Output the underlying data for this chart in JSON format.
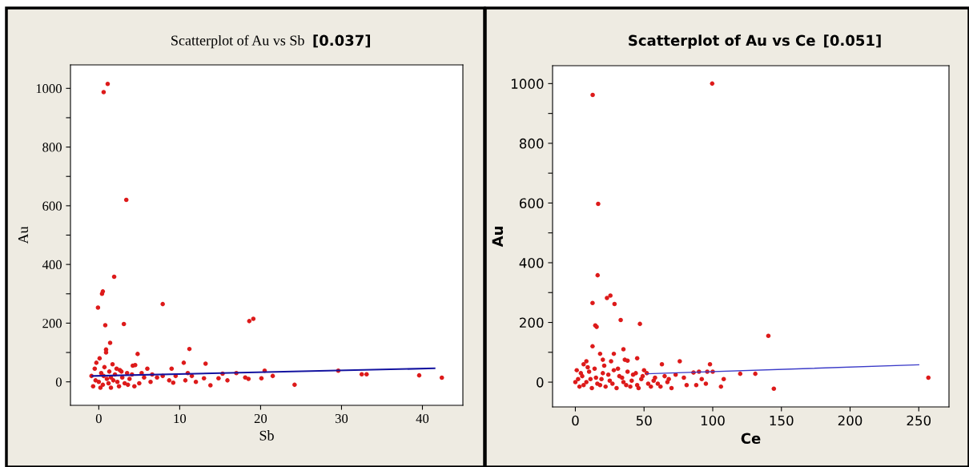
{
  "chart_data": [
    {
      "type": "scatter",
      "title": "Scatterplot of Au vs Sb",
      "annotations": [
        "[0.037]"
      ],
      "xlabel": "Sb",
      "ylabel": "Au",
      "xlim": [
        -3.5,
        45
      ],
      "ylim": [
        -80,
        1080
      ],
      "xticks": [
        0,
        10,
        20,
        30,
        40
      ],
      "yticks": [
        0,
        {
          "value": 100,
          "label": null
        },
        200,
        {
          "value": 300,
          "label": null
        },
        400,
        {
          "value": 500,
          "label": null
        },
        600,
        {
          "value": 700,
          "label": null
        },
        800,
        {
          "value": 900,
          "label": null
        },
        1000
      ],
      "grid": false,
      "series": [
        {
          "marker": "circle",
          "color": "#dd1a1a",
          "x": [
            0.6,
            1.1,
            3.4,
            1.9,
            0.4,
            0.5,
            -0.1,
            7.9,
            0.8,
            3.1,
            18.6,
            19.1,
            1.4,
            0.9,
            0.9,
            4.8,
            11.2,
            10.5,
            13.2,
            4.2,
            4.5,
            12.0,
            13.8,
            14.8,
            15.3,
            15.9,
            17.0,
            18.1,
            18.5,
            20.1,
            20.5,
            21.5,
            24.2,
            29.6,
            32.5,
            33.1,
            39.6,
            42.4,
            9.0,
            9.5,
            8.7,
            9.2,
            7.2,
            7.9,
            6.4,
            6.0,
            5.3,
            5.6,
            6.6,
            11.0,
            10.7,
            11.5,
            13.0,
            5.0,
            4.4,
            3.6,
            2.5,
            1.5,
            0.2,
            -0.7,
            -0.9,
            -0.5,
            -0.3,
            0.1,
            0.3,
            0.7,
            1.0,
            1.3,
            1.7,
            2.0,
            2.3,
            2.6,
            2.9,
            3.2,
            3.5,
            3.8,
            4.1,
            0.0,
            0.5,
            1.2,
            1.8,
            2.2,
            -0.4,
            0.6,
            1.5,
            2.8
          ],
          "values": [
            987,
            1015,
            620,
            358,
            300,
            308,
            253,
            265,
            193,
            197,
            207,
            215,
            133,
            110,
            100,
            95,
            112,
            65,
            62,
            55,
            57,
            0,
            -12,
            12,
            28,
            5,
            30,
            15,
            10,
            12,
            38,
            20,
            -10,
            38,
            26,
            26,
            22,
            14,
            45,
            20,
            5,
            -3,
            15,
            20,
            0,
            45,
            30,
            15,
            25,
            30,
            5,
            20,
            12,
            -5,
            -15,
            -10,
            -15,
            -20,
            -20,
            -15,
            20,
            45,
            65,
            80,
            30,
            50,
            10,
            35,
            60,
            25,
            0,
            40,
            15,
            -5,
            30,
            10,
            25,
            0,
            -10,
            -5,
            5,
            45,
            5,
            20,
            15,
            35
          ]
        },
        {
          "type": "line",
          "color": "#1414a0",
          "x": [
            -0.8,
            41.5
          ],
          "values": [
            20,
            46
          ]
        }
      ]
    },
    {
      "type": "scatter",
      "title": "Scatterplot of Au vs Ce",
      "annotations": [
        "[0.051]"
      ],
      "xlabel": "Ce",
      "ylabel": "Au",
      "xlim": [
        -16.6,
        272
      ],
      "ylim": [
        -83,
        1060
      ],
      "xticks": [
        0,
        50,
        100,
        150,
        200,
        250
      ],
      "yticks": [
        0,
        {
          "value": 100,
          "label": null
        },
        200,
        {
          "value": 300,
          "label": null
        },
        400,
        {
          "value": 500,
          "label": null
        },
        600,
        {
          "value": 700,
          "label": null
        },
        800,
        {
          "value": 900,
          "label": null
        },
        1000
      ],
      "grid": false,
      "series": [
        {
          "marker": "circle",
          "color": "#dd1a1a",
          "x": [
            12.6,
            99.6,
            16.6,
            16.2,
            12.5,
            23,
            25.5,
            28.5,
            33,
            47,
            14.5,
            15.5,
            140.5,
            12.5,
            18,
            35,
            36,
            38,
            28,
            45,
            20,
            8,
            6,
            26,
            63,
            76,
            98,
            120,
            131,
            106,
            108,
            144.5,
            257,
            90,
            86,
            92,
            96,
            100,
            95,
            88,
            81,
            79,
            73,
            70,
            67,
            65,
            60,
            55,
            57,
            52,
            50,
            48,
            45,
            42,
            40,
            38,
            35,
            32,
            30,
            28,
            25,
            22,
            20,
            18,
            15,
            12,
            10,
            8,
            5,
            3,
            1,
            0,
            2,
            4,
            6,
            9,
            11,
            14,
            16,
            19,
            21,
            24,
            27,
            31,
            34,
            37,
            41,
            44,
            46,
            49,
            53,
            58,
            62,
            68
          ],
          "values": [
            962,
            1000,
            597,
            358,
            265,
            282,
            290,
            262,
            208,
            195,
            190,
            185,
            155,
            120,
            95,
            110,
            75,
            72,
            95,
            80,
            75,
            70,
            60,
            70,
            60,
            70,
            60,
            28,
            28,
            -15,
            10,
            -22,
            15,
            35,
            32,
            10,
            35,
            35,
            -5,
            -10,
            -10,
            15,
            25,
            -20,
            0,
            20,
            -5,
            -15,
            5,
            30,
            40,
            10,
            -10,
            25,
            -15,
            35,
            0,
            20,
            -20,
            40,
            5,
            -15,
            30,
            -10,
            15,
            -20,
            35,
            0,
            20,
            -15,
            40,
            0,
            10,
            30,
            -10,
            50,
            10,
            45,
            -5,
            10,
            55,
            25,
            -5,
            45,
            15,
            -10,
            5,
            30,
            -20,
            20,
            -5,
            15,
            -15,
            10
          ]
        },
        {
          "type": "line",
          "color": "#3a3ac8",
          "x": [
            52,
            250
          ],
          "values": [
            28,
            58
          ]
        }
      ]
    }
  ]
}
